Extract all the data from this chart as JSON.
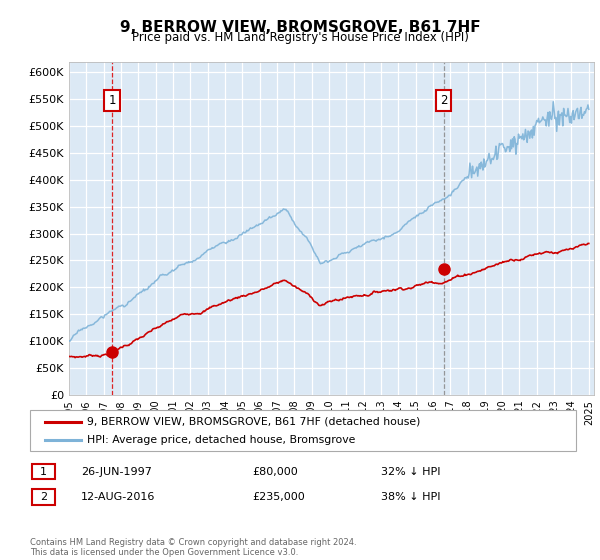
{
  "title": "9, BERROW VIEW, BROMSGROVE, B61 7HF",
  "subtitle": "Price paid vs. HM Land Registry's House Price Index (HPI)",
  "plot_bg_color": "#dce9f5",
  "ylim": [
    0,
    620000
  ],
  "yticks": [
    0,
    50000,
    100000,
    150000,
    200000,
    250000,
    300000,
    350000,
    400000,
    450000,
    500000,
    550000,
    600000
  ],
  "ytick_labels": [
    "£0",
    "£50K",
    "£100K",
    "£150K",
    "£200K",
    "£250K",
    "£300K",
    "£350K",
    "£400K",
    "£450K",
    "£500K",
    "£550K",
    "£600K"
  ],
  "sale1_year": 1997.49,
  "sale1_price": 80000,
  "sale1_label": "1",
  "sale1_date": "26-JUN-1997",
  "sale1_amount": "£80,000",
  "sale1_hpi": "32% ↓ HPI",
  "sale2_year": 2016.62,
  "sale2_price": 235000,
  "sale2_label": "2",
  "sale2_date": "12-AUG-2016",
  "sale2_amount": "£235,000",
  "sale2_hpi": "38% ↓ HPI",
  "red_line_color": "#cc0000",
  "blue_line_color": "#7eb3d8",
  "sale1_vline_color": "#dd0000",
  "sale2_vline_color": "#888888",
  "legend_label_red": "9, BERROW VIEW, BROMSGROVE, B61 7HF (detached house)",
  "legend_label_blue": "HPI: Average price, detached house, Bromsgrove",
  "footer": "Contains HM Land Registry data © Crown copyright and database right 2024.\nThis data is licensed under the Open Government Licence v3.0."
}
